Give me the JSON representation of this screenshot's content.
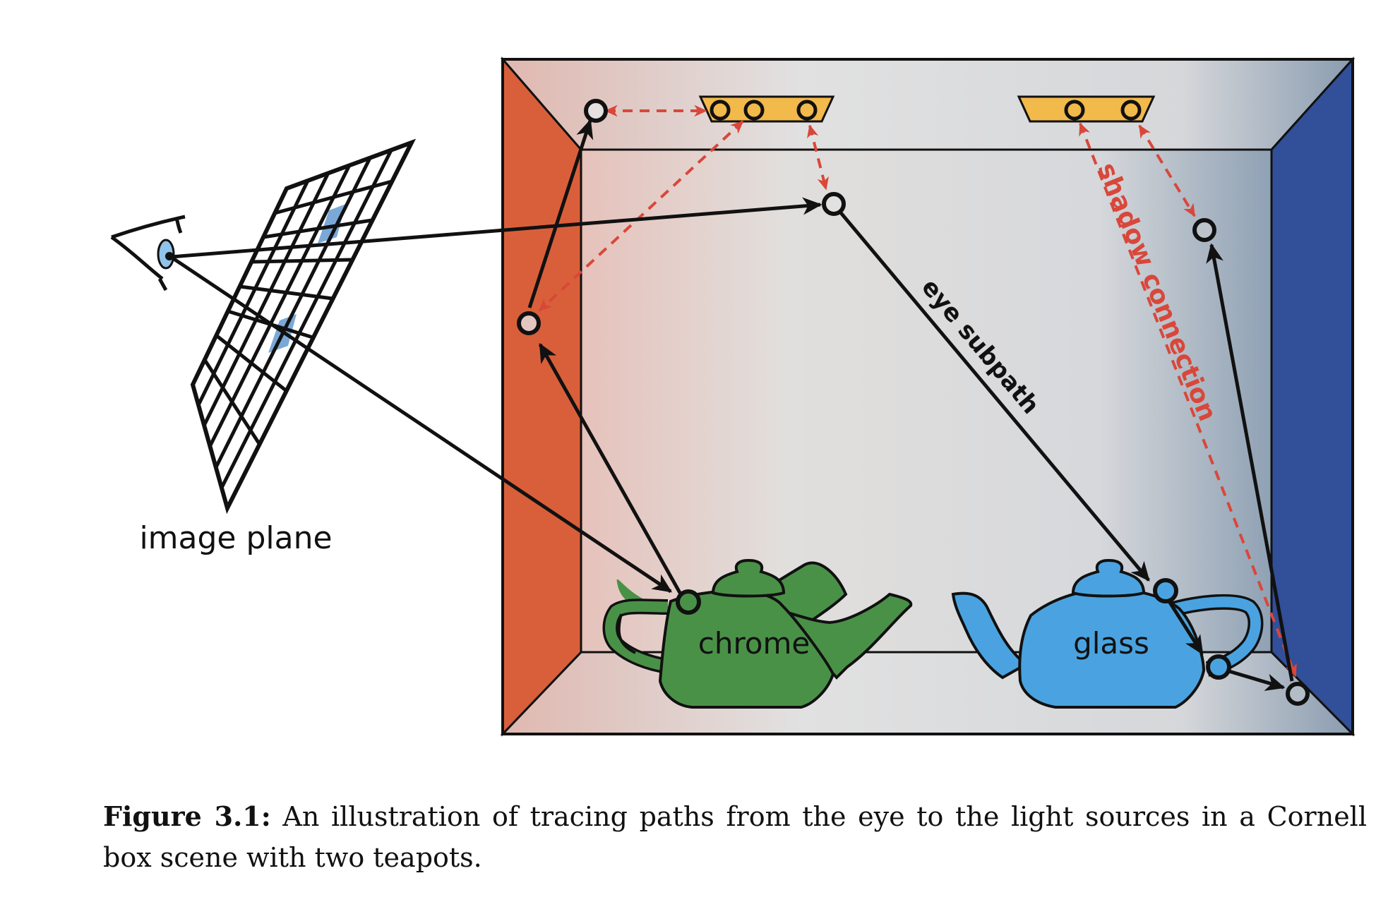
{
  "labels": {
    "image_plane": "image plane",
    "chrome": "chrome",
    "glass": "glass",
    "eye_subpath": "eye subpath",
    "shadow_connection": "shadow connection"
  },
  "caption": {
    "label": "Figure 3.1:",
    "text": " An illustration of tracing paths from the eye to the light sources in a Cornell box scene with two teapots."
  },
  "colors": {
    "left_wall": "#d95f3b",
    "right_wall": "#324f9a",
    "light": "#f2b94b",
    "chrome_teapot": "#4a9148",
    "glass_teapot": "#4aa3e0",
    "shadow_ray": "#d9473a",
    "eye_ray": "#111111"
  }
}
